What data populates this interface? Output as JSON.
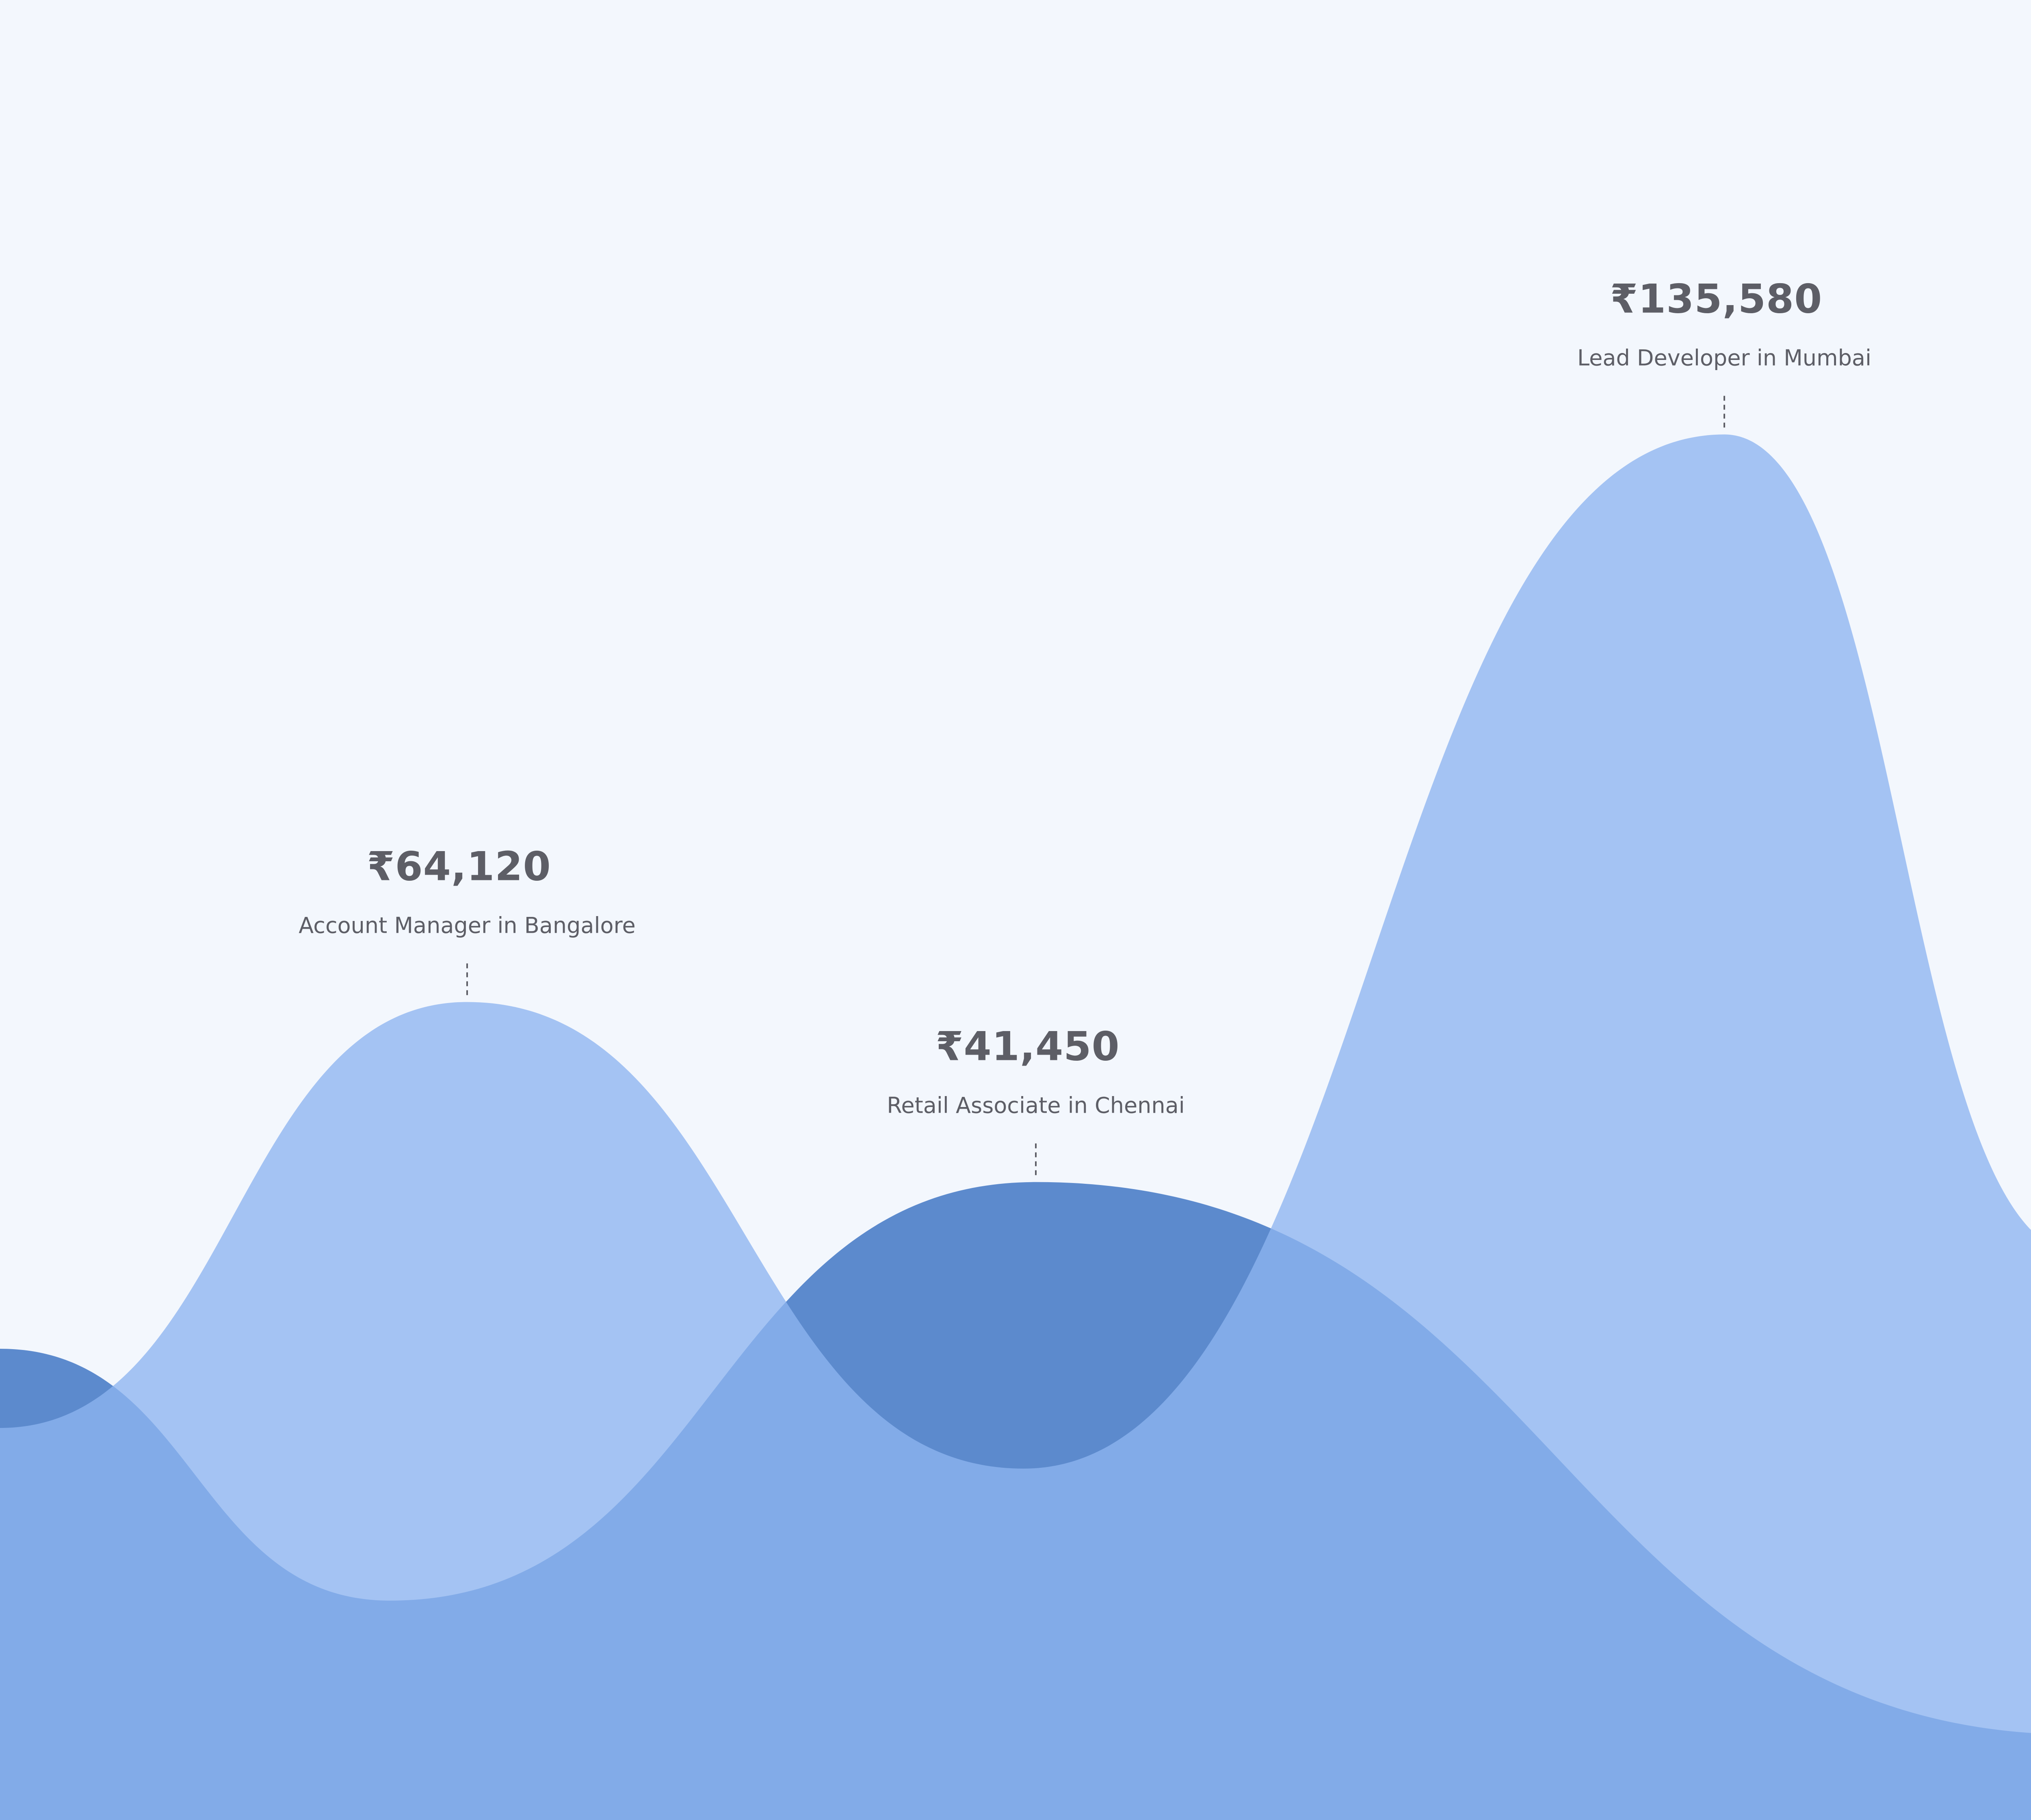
{
  "chart_data": {
    "type": "area",
    "currency_symbol": "₹",
    "categories": [
      "Account Manager in Bangalore",
      "Retail Associate in Chennai",
      "Lead Developer in Mumbai"
    ],
    "values": [
      64120,
      41450,
      135580
    ],
    "value_labels": [
      "₹64,120",
      "₹41,450",
      "₹135,580"
    ],
    "colors": {
      "background": "#f3f7fd",
      "front_wave": "#8db5f0",
      "back_wave": "#5c8acd",
      "text": "#5d5e66"
    },
    "grid": false,
    "legend": "none"
  }
}
